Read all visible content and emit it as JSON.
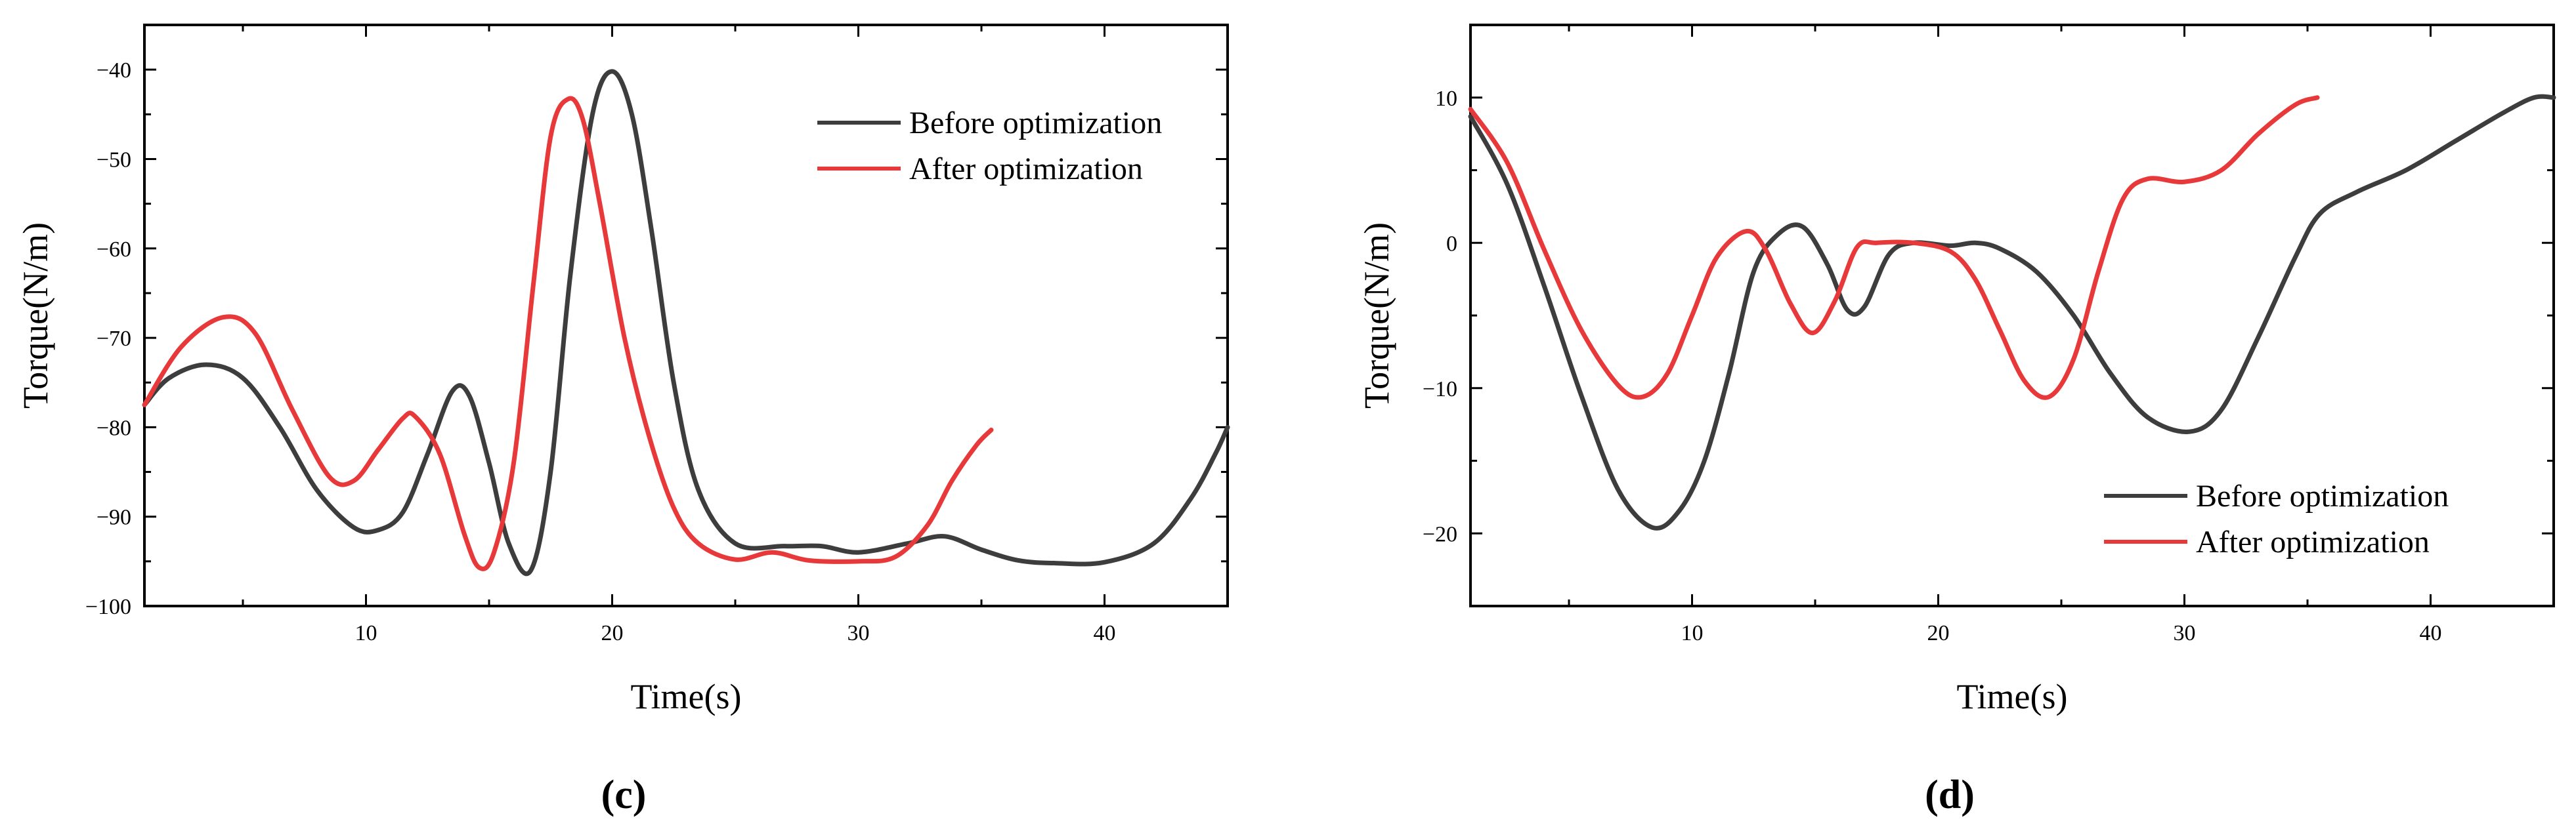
{
  "chart_data": [
    {
      "type": "line",
      "panel": "(c)",
      "xlabel": "Time(s)",
      "ylabel": "Torque(N/m)",
      "xlim": [
        1,
        45
      ],
      "ylim": [
        -100,
        -35
      ],
      "xticks": [
        10,
        20,
        30,
        40
      ],
      "xtick_labels": [
        "10",
        "20",
        "30",
        "40"
      ],
      "yticks": [
        -100,
        -90,
        -80,
        -70,
        -60,
        -50,
        -40
      ],
      "ytick_labels": [
        "−100",
        "−90",
        "−80",
        "−70",
        "−60",
        "−50",
        "−40"
      ],
      "legend_position": "top-right",
      "series": [
        {
          "name": "Before optimization",
          "color": "#3d3d3d",
          "x": [
            1,
            2,
            3.5,
            5,
            6.5,
            8,
            9.5,
            10.5,
            11.5,
            12.5,
            13.5,
            14.2,
            15,
            15.8,
            16.7,
            17.5,
            18.3,
            19.2,
            20,
            20.8,
            21.6,
            22.5,
            23.5,
            25,
            27,
            28.5,
            30,
            32,
            33.5,
            35,
            36.5,
            38,
            40,
            42,
            43.5,
            44.5,
            45
          ],
          "y": [
            -77.5,
            -74.5,
            -73,
            -74.5,
            -80,
            -87,
            -91.2,
            -91.5,
            -89.5,
            -83,
            -76,
            -76.5,
            -84,
            -93,
            -96,
            -85,
            -63,
            -45,
            -40.2,
            -45,
            -58,
            -75,
            -87,
            -93,
            -93.3,
            -93.3,
            -94,
            -93,
            -92.2,
            -93.7,
            -94.9,
            -95.2,
            -95.1,
            -93,
            -88,
            -83,
            -80
          ]
        },
        {
          "name": "After optimization",
          "color": "#e8393a",
          "x": [
            1,
            2.5,
            4.2,
            5.5,
            7,
            8.5,
            9.5,
            10.5,
            11.5,
            12,
            13,
            14,
            14.6,
            15.2,
            16,
            16.8,
            17.5,
            18.2,
            18.8,
            19.5,
            20.5,
            21.5,
            22.5,
            23.5,
            25,
            26.5,
            28,
            30,
            31.5,
            32.8,
            33.8,
            34.8,
            35.4
          ],
          "y": [
            -77.5,
            -71,
            -67.7,
            -69.5,
            -78,
            -85.5,
            -86,
            -82.5,
            -79,
            -78.8,
            -83,
            -92,
            -95.7,
            -94,
            -84,
            -64,
            -47.5,
            -43.3,
            -45.5,
            -55,
            -70,
            -81,
            -89,
            -93,
            -94.8,
            -94,
            -94.9,
            -95,
            -94.5,
            -91,
            -86,
            -82,
            -80.3
          ]
        }
      ]
    },
    {
      "type": "line",
      "panel": "(d)",
      "xlabel": "Time(s)",
      "ylabel": "Torque(N/m)",
      "xlim": [
        1,
        45
      ],
      "ylim": [
        -25,
        15
      ],
      "xticks": [
        10,
        20,
        30,
        40
      ],
      "xtick_labels": [
        "10",
        "20",
        "30",
        "40"
      ],
      "yticks": [
        -20,
        -10,
        0,
        10
      ],
      "ytick_labels": [
        "−20",
        "−10",
        "0",
        "10"
      ],
      "legend_position": "bottom-right",
      "series": [
        {
          "name": "Before optimization",
          "color": "#3d3d3d",
          "x": [
            1,
            2.5,
            4,
            5.5,
            7,
            8.4,
            9.5,
            10.5,
            11.5,
            12.5,
            13.5,
            14.5,
            15.5,
            16.3,
            17,
            18,
            19,
            20.5,
            21.5,
            22.5,
            24,
            25.5,
            27,
            28.5,
            30.2,
            31.5,
            33,
            34.5,
            35.5,
            37,
            39,
            41,
            43,
            44.2,
            45
          ],
          "y": [
            8.7,
            4,
            -3,
            -10.5,
            -17,
            -19.6,
            -18.4,
            -15,
            -9,
            -2,
            0.6,
            1.1,
            -1.5,
            -4.6,
            -4.4,
            -0.8,
            0,
            -0.2,
            0,
            -0.4,
            -2,
            -5,
            -9,
            -12,
            -13,
            -11.5,
            -6.5,
            -1,
            2,
            3.5,
            5,
            7,
            9,
            10,
            10
          ]
        },
        {
          "name": "After optimization",
          "color": "#e8393a",
          "x": [
            1,
            2.5,
            4,
            5.5,
            7,
            8,
            9,
            10,
            11,
            12.2,
            13,
            14,
            14.9,
            15.8,
            16.7,
            17.5,
            19,
            20.5,
            21.5,
            22.5,
            23.5,
            24.5,
            25.5,
            26.5,
            27.5,
            28.5,
            30,
            31.5,
            33,
            34.5,
            35.4
          ],
          "y": [
            9.2,
            5.5,
            -0.5,
            -6,
            -9.8,
            -10.6,
            -9,
            -5,
            -1,
            0.8,
            -0.5,
            -4.2,
            -6.2,
            -4,
            -0.3,
            0,
            0,
            -0.6,
            -2.5,
            -6,
            -9.5,
            -10.6,
            -8,
            -2,
            3,
            4.4,
            4.2,
            5,
            7.5,
            9.5,
            10
          ]
        }
      ]
    }
  ]
}
